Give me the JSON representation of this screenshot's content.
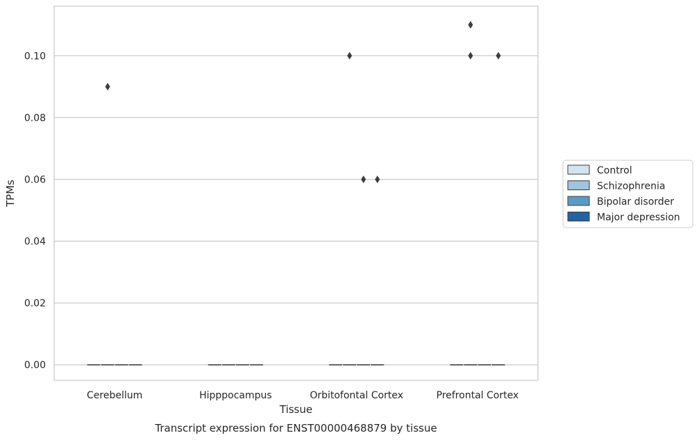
{
  "chart_data": {
    "type": "box",
    "title": "",
    "caption": "Transcript expression for ENST00000468879 by tissue",
    "xlabel": "Tissue",
    "ylabel": "TPMs",
    "categories": [
      "Cerebellum",
      "Hipppocampus",
      "Orbitofontal Cortex",
      "Prefrontal Cortex"
    ],
    "ylim": [
      -0.005,
      0.116
    ],
    "yticks": [
      0.0,
      0.02,
      0.04,
      0.06,
      0.08,
      0.1
    ],
    "ytick_labels": [
      "0.00",
      "0.02",
      "0.04",
      "0.06",
      "0.08",
      "0.10"
    ],
    "grid": "y",
    "legend_position": "right",
    "series": [
      {
        "name": "Control",
        "color": "#d4e3f0",
        "boxes": [
          {
            "median": 0,
            "q1": 0,
            "q3": 0
          },
          {
            "median": 0,
            "q1": 0,
            "q3": 0
          },
          {
            "median": 0,
            "q1": 0,
            "q3": 0
          },
          {
            "median": 0,
            "q1": 0,
            "q3": 0
          }
        ],
        "outliers": [
          [],
          [],
          [],
          []
        ]
      },
      {
        "name": "Schizophrenia",
        "color": "#9ec4de",
        "boxes": [
          {
            "median": 0,
            "q1": 0,
            "q3": 0
          },
          {
            "median": 0,
            "q1": 0,
            "q3": 0
          },
          {
            "median": 0,
            "q1": 0,
            "q3": 0
          },
          {
            "median": 0,
            "q1": 0,
            "q3": 0
          }
        ],
        "outliers": [
          [
            0.09
          ],
          [],
          [
            0.1
          ],
          [
            0.11,
            0.1
          ]
        ]
      },
      {
        "name": "Bipolar disorder",
        "color": "#5a9ac6",
        "boxes": [
          {
            "median": 0,
            "q1": 0,
            "q3": 0
          },
          {
            "median": 0,
            "q1": 0,
            "q3": 0
          },
          {
            "median": 0,
            "q1": 0,
            "q3": 0
          },
          {
            "median": 0,
            "q1": 0,
            "q3": 0
          }
        ],
        "outliers": [
          [],
          [],
          [
            0.06
          ],
          []
        ]
      },
      {
        "name": "Major depression",
        "color": "#2463a0",
        "boxes": [
          {
            "median": 0,
            "q1": 0,
            "q3": 0
          },
          {
            "median": 0,
            "q1": 0,
            "q3": 0
          },
          {
            "median": 0,
            "q1": 0,
            "q3": 0
          },
          {
            "median": 0,
            "q1": 0,
            "q3": 0
          }
        ],
        "outliers": [
          [],
          [],
          [
            0.06
          ],
          [
            0.1
          ]
        ]
      }
    ]
  }
}
